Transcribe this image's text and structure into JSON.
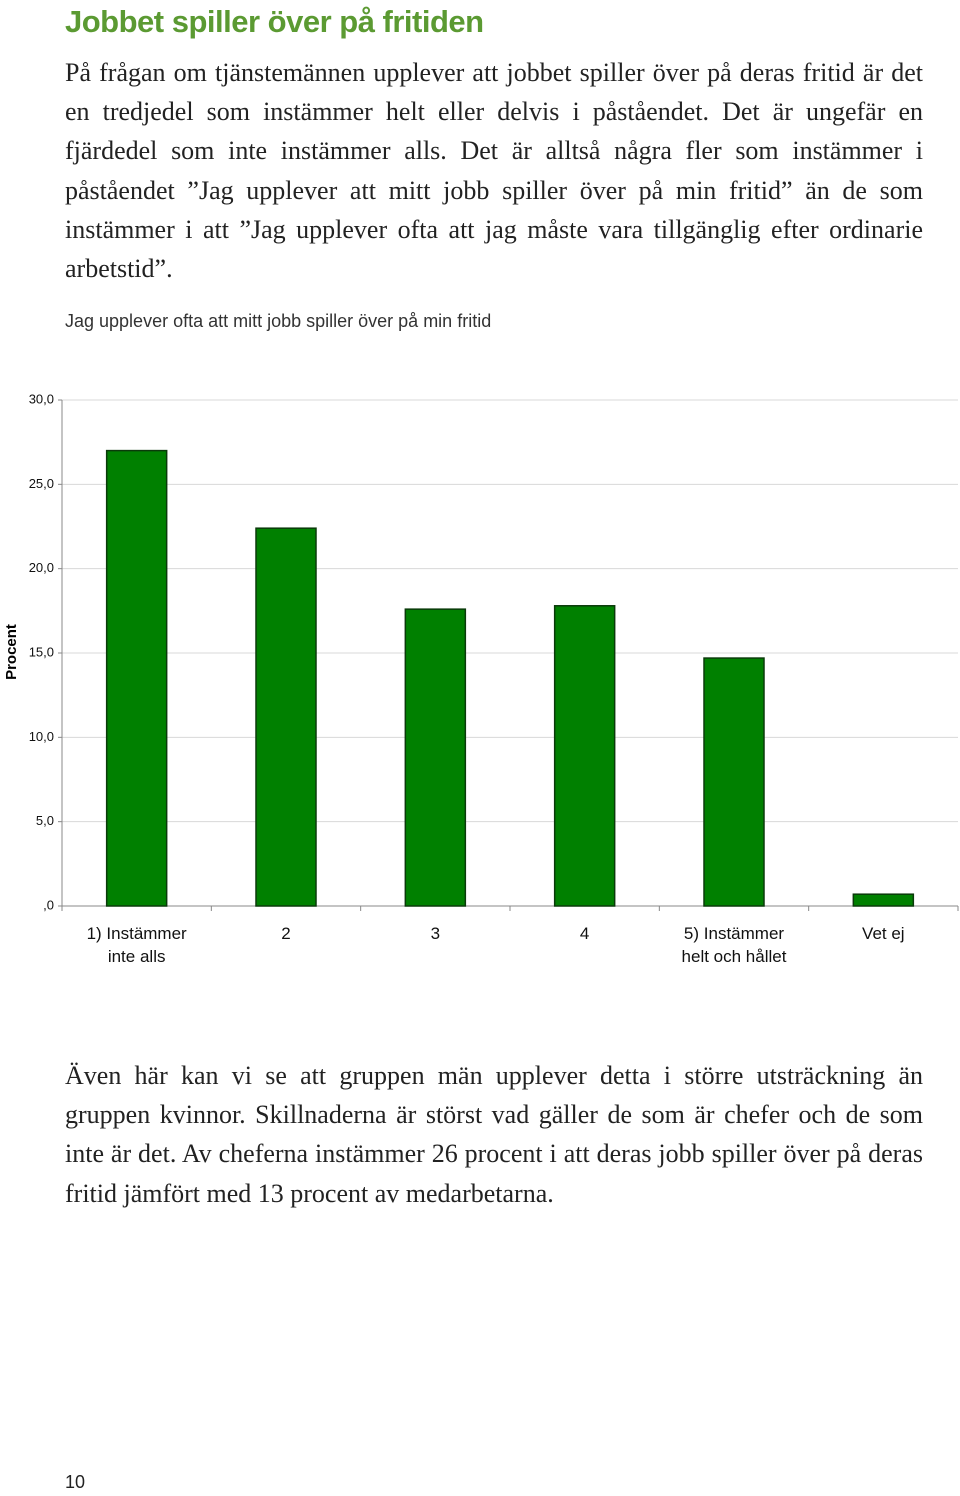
{
  "heading": "Jobbet spiller över på fritiden",
  "paragraphs": [
    "På frågan om tjänstemännen upplever att jobbet spiller över på deras fritid är det en tredjedel som instämmer helt eller delvis i påståendet. Det är ungefär en fjärdedel som inte instämmer alls. Det är alltså några fler som instämmer i påståendet ”Jag upplever att mitt jobb spiller över på min fritid” än de som instämmer i att ”Jag upplever ofta att jag måste vara tillgänglig efter ordinarie arbetstid”.",
    "Även här kan vi se att gruppen män upplever detta i större utsträckning än gruppen kvinnor. Skillnaderna är störst vad gäller de som är chefer och de som inte är det. Av cheferna instämmer 26 procent i att deras jobb spiller över på deras fritid jämfört med 13 procent av medarbetarna."
  ],
  "chart_data": {
    "type": "bar",
    "title": "Jag upplever ofta att mitt jobb spiller över på min fritid",
    "y_label": "Procent",
    "categories": [
      "1) Instämmer inte alls",
      "2",
      "3",
      "4",
      "5) Instämmer helt och hållet",
      "Vet ej"
    ],
    "values": [
      27.0,
      22.4,
      17.6,
      17.8,
      14.7,
      0.7
    ],
    "color": "#008000",
    "ylim": [
      0,
      30
    ],
    "yticks": [
      {
        "value": 0,
        "label": ",0"
      },
      {
        "value": 5,
        "label": "5,0"
      },
      {
        "value": 10,
        "label": "10,0"
      },
      {
        "value": 15,
        "label": "15,0"
      },
      {
        "value": 20,
        "label": "20,0"
      },
      {
        "value": 25,
        "label": "25,0"
      },
      {
        "value": 30,
        "label": "30,0"
      }
    ],
    "grid": true
  },
  "page_number": "10"
}
